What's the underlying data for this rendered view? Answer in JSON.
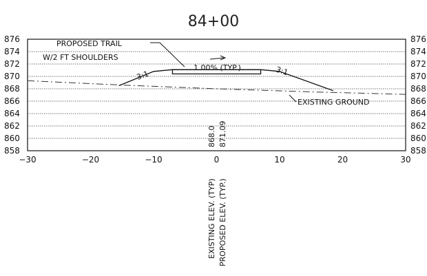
{
  "title": "84+00",
  "chart_data": {
    "type": "line",
    "x_ticks": [
      -30,
      -20,
      -10,
      0,
      10,
      20,
      30
    ],
    "x_tick_labels": [
      "−30",
      "−20",
      "−10",
      "0",
      "10",
      "20",
      "30"
    ],
    "y_ticks": [
      858,
      860,
      862,
      864,
      866,
      868,
      870,
      872,
      874,
      876
    ],
    "y_tick_labels": [
      "858",
      "860",
      "862",
      "864",
      "866",
      "868",
      "870",
      "872",
      "874",
      "876"
    ],
    "xlim": [
      -30,
      30
    ],
    "ylim": [
      858,
      876
    ],
    "grid": true,
    "existing_ground": {
      "x": [
        -30,
        -15,
        0,
        15,
        30
      ],
      "y": [
        869.3,
        868.6,
        868.0,
        867.5,
        867.1
      ]
    },
    "proposed_section": {
      "x": [
        -15.5,
        -10,
        -7,
        7,
        10,
        18.5
      ],
      "y": [
        868.5,
        870.8,
        871.09,
        871.09,
        870.8,
        867.7
      ]
    },
    "trail_pad": {
      "x_left": -7,
      "x_right": 7,
      "top": 871.09,
      "bottom": 870.4
    },
    "annotations": {
      "proposed_trail": "PROPOSED TRAIL",
      "shoulders": "W/2 FT SHOULDERS",
      "cross_slope": "1.00% (TYP.)",
      "side_slope_left": "3:1",
      "side_slope_right": "3:1",
      "existing_ground": "EXISTING GROUND",
      "existing_elev_value": "868.0",
      "proposed_elev_value": "871.09",
      "existing_elev_label": "EXISTING ELEV. (TYP)",
      "proposed_elev_label": "PROPOSED ELEV. (TYP.)"
    }
  }
}
